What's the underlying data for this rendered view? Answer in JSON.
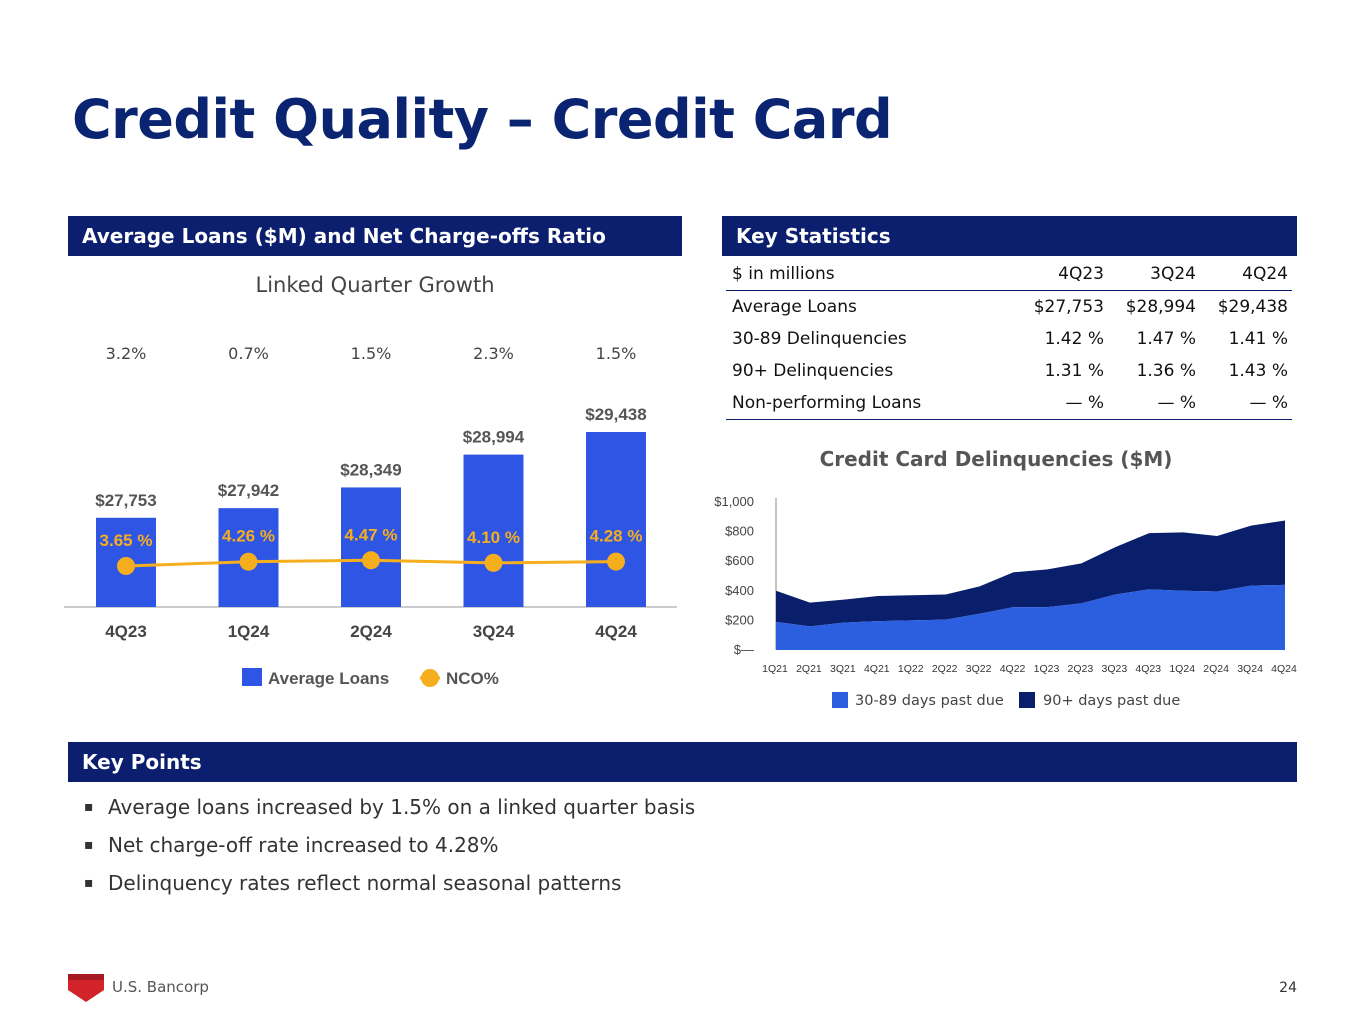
{
  "page": {
    "title": "Credit Quality – Credit Card",
    "page_number": "24",
    "logo_text": "U.S. Bancorp",
    "colors": {
      "navy": "#0c1f6e",
      "title_blue": "#0a2472",
      "bar_blue": "#2f55e4",
      "orange": "#f5ae1e",
      "light_area": "#2b5fe0",
      "dark_area": "#0a1f6b"
    }
  },
  "left_panel": {
    "header": "Average Loans ($M) and Net Charge-offs Ratio",
    "subtitle": "Linked Quarter Growth"
  },
  "right_panel": {
    "header": "Key Statistics",
    "table": {
      "columns": [
        "$ in millions",
        "4Q23",
        "3Q24",
        "4Q24"
      ],
      "rows": [
        [
          "Average Loans",
          "$27,753",
          "$28,994",
          "$29,438"
        ],
        [
          "30-89 Delinquencies",
          "1.42 %",
          "1.47 %",
          "1.41 %"
        ],
        [
          "90+ Delinquencies",
          "1.31 %",
          "1.36 %",
          "1.43 %"
        ],
        [
          "Non-performing Loans",
          "— %",
          "— %",
          "— %"
        ]
      ]
    }
  },
  "key_points": {
    "header": "Key Points",
    "items": [
      "Average loans increased by 1.5% on a linked quarter basis",
      "Net charge-off rate increased to 4.28%",
      "Delinquency rates reflect normal seasonal patterns"
    ]
  },
  "chart_data": [
    {
      "type": "bar",
      "title": "Linked Quarter Growth",
      "categories": [
        "4Q23",
        "1Q24",
        "2Q24",
        "3Q24",
        "4Q24"
      ],
      "growth_labels": [
        "3.2%",
        "0.7%",
        "1.5%",
        "2.3%",
        "1.5%"
      ],
      "series": [
        {
          "name": "Average Loans",
          "values": [
            27753,
            27942,
            28349,
            28994,
            29438
          ],
          "labels": [
            "$27,753",
            "$27,942",
            "$28,349",
            "$28,994",
            "$29,438"
          ]
        },
        {
          "name": "NCO%",
          "type": "line",
          "values": [
            3.65,
            4.26,
            4.47,
            4.1,
            4.28
          ],
          "labels": [
            "3.65 %",
            "4.26 %",
            "4.47 %",
            "4.10 %",
            "4.28 %"
          ]
        }
      ],
      "legend": [
        "Average Loans",
        "NCO%"
      ]
    },
    {
      "type": "area",
      "stacked": true,
      "title": "Credit Card Delinquencies ($M)",
      "x": [
        "1Q21",
        "2Q21",
        "3Q21",
        "4Q21",
        "1Q22",
        "2Q22",
        "3Q22",
        "4Q22",
        "1Q23",
        "2Q23",
        "3Q23",
        "4Q23",
        "1Q24",
        "2Q24",
        "3Q24",
        "4Q24"
      ],
      "ylim": [
        0,
        1000
      ],
      "yticks": [
        0,
        200,
        400,
        600,
        800,
        1000
      ],
      "ytick_labels": [
        "$—",
        "$200",
        "$400",
        "$600",
        "$800",
        "$1,000"
      ],
      "series": [
        {
          "name": "30-89 days past due",
          "values": [
            190,
            160,
            185,
            195,
            200,
            205,
            245,
            290,
            290,
            315,
            375,
            410,
            400,
            395,
            435,
            440
          ]
        },
        {
          "name": "90+ days past due",
          "values": [
            210,
            160,
            155,
            170,
            170,
            170,
            185,
            235,
            255,
            270,
            320,
            380,
            395,
            375,
            405,
            435
          ]
        }
      ],
      "legend": [
        "30-89 days past due",
        "90+ days past due"
      ]
    }
  ]
}
